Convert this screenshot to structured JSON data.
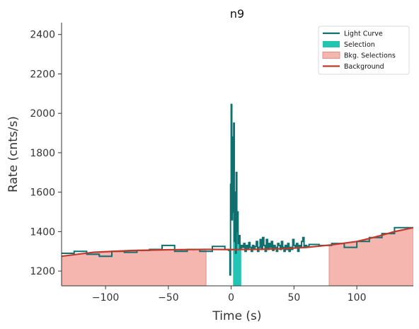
{
  "chart_data": {
    "type": "line",
    "title": "n9",
    "xlabel": "Time (s)",
    "ylabel": "Rate (cnts/s)",
    "xlim": [
      -135,
      145
    ],
    "ylim": [
      1125,
      2460
    ],
    "xticks": [
      -100,
      -50,
      0,
      50,
      100
    ],
    "xtick_labels": [
      "−100",
      "−50",
      "0",
      "50",
      "100"
    ],
    "yticks": [
      1200,
      1400,
      1600,
      1800,
      2000,
      2200,
      2400
    ],
    "ytick_labels": [
      "1200",
      "1400",
      "1600",
      "1800",
      "2000",
      "2200",
      "2400"
    ],
    "grid": false,
    "legend": {
      "position": "top-right",
      "entries": [
        {
          "label": "Light Curve",
          "kind": "line",
          "color": "#0f7070"
        },
        {
          "label": "Selection",
          "kind": "patch",
          "color": "#22c4b4"
        },
        {
          "label": "Bkg. Selections",
          "kind": "patch",
          "color": "#f5b6b0"
        },
        {
          "label": "Background",
          "kind": "line",
          "color": "#c0392b"
        }
      ]
    },
    "colors": {
      "light_curve": "#0f7070",
      "selection": "#22c4b4",
      "bkg_selection": "#f5b6b0",
      "bkg_selection_edge": "#e88d85",
      "background": "#c0392b"
    },
    "series": [
      {
        "name": "Light Curve",
        "kind": "step",
        "x": [
          -135,
          -125,
          -115,
          -105,
          -95,
          -85,
          -75,
          -65,
          -55,
          -45,
          -35,
          -25,
          -15,
          -5,
          -2,
          -1,
          -0.5,
          0,
          0.5,
          1,
          1.5,
          2,
          2.5,
          3,
          3.5,
          4,
          4.5,
          5,
          5.5,
          6,
          7,
          8,
          9,
          10,
          11,
          12,
          13,
          14,
          15,
          16,
          17,
          18,
          19,
          20,
          21,
          22,
          23,
          24,
          25,
          26,
          27,
          28,
          29,
          30,
          31,
          32,
          33,
          34,
          35,
          36,
          37,
          38,
          39,
          40,
          41,
          42,
          43,
          44,
          45,
          46,
          47,
          48,
          49,
          50,
          51,
          52,
          53,
          54,
          55,
          56,
          57,
          58,
          59,
          60,
          62,
          70,
          80,
          90,
          100,
          110,
          120,
          130,
          145
        ],
        "y": [
          1290,
          1300,
          1285,
          1275,
          1300,
          1295,
          1305,
          1310,
          1330,
          1300,
          1310,
          1300,
          1325,
          1310,
          1305,
          1180,
          1640,
          2045,
          1460,
          1880,
          1500,
          1950,
          1350,
          1600,
          1290,
          1700,
          1400,
          1500,
          1340,
          1380,
          1310,
          1330,
          1320,
          1340,
          1300,
          1330,
          1310,
          1345,
          1320,
          1300,
          1330,
          1310,
          1325,
          1350,
          1300,
          1320,
          1360,
          1310,
          1370,
          1330,
          1300,
          1360,
          1310,
          1340,
          1320,
          1350,
          1305,
          1330,
          1320,
          1300,
          1340,
          1330,
          1310,
          1350,
          1320,
          1300,
          1330,
          1310,
          1340,
          1300,
          1320,
          1310,
          1360,
          1330,
          1320,
          1340,
          1300,
          1330,
          1320,
          1350,
          1370,
          1320,
          1330,
          1325,
          1335,
          1330,
          1340,
          1320,
          1350,
          1370,
          1390,
          1420,
          1420
        ]
      },
      {
        "name": "Background",
        "kind": "curve",
        "x": [
          -135,
          -110,
          -80,
          -50,
          -20,
          0,
          20,
          40,
          60,
          80,
          100,
          110,
          120,
          130,
          145
        ],
        "y": [
          1275,
          1295,
          1304,
          1308,
          1310,
          1309,
          1310,
          1313,
          1320,
          1333,
          1350,
          1365,
          1382,
          1400,
          1420
        ]
      }
    ],
    "selection": {
      "name": "Selection",
      "x_range": [
        1.5,
        8
      ]
    },
    "bkg_selections": {
      "name": "Bkg. Selections",
      "ranges": [
        [
          -135,
          -20
        ],
        [
          78,
          145
        ]
      ]
    }
  }
}
